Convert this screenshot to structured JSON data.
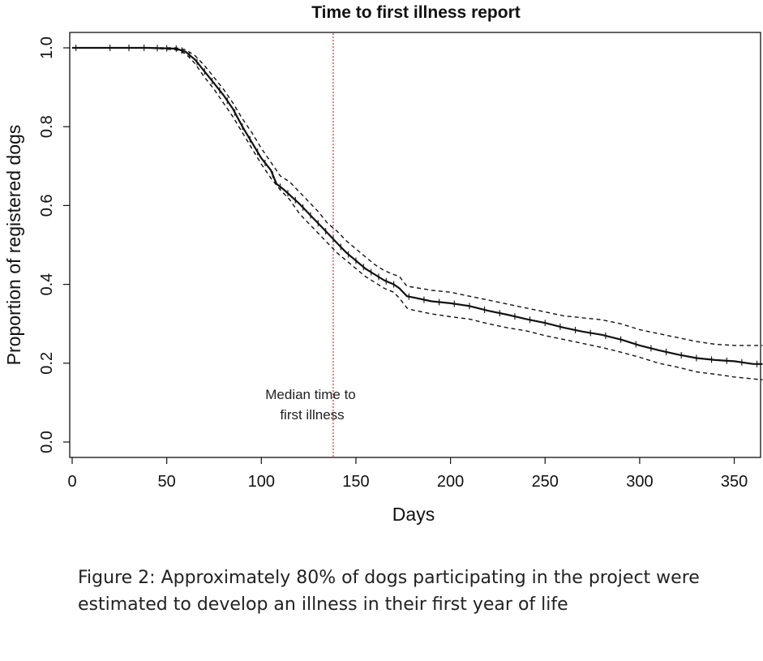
{
  "figure": {
    "caption_line1": "Figure 2: Approximately 80% of dogs participating in the project were",
    "caption_line2": "estimated to develop an illness in their first year of life"
  },
  "chart_data": {
    "type": "line",
    "title": "Time to first illness report",
    "xlabel": "Days",
    "ylabel": "Proportion of registered dogs",
    "xlim": [
      0,
      365
    ],
    "ylim": [
      0,
      1.0
    ],
    "x_ticks": [
      0,
      50,
      100,
      150,
      200,
      250,
      300,
      350
    ],
    "y_ticks": [
      0.0,
      0.2,
      0.4,
      0.6,
      0.8,
      1.0
    ],
    "x_tick_labels": [
      "0",
      "50",
      "100",
      "150",
      "200",
      "250",
      "300",
      "350"
    ],
    "y_tick_labels": [
      "0.0",
      "0.2",
      "0.4",
      "0.6",
      "0.8",
      "1.0"
    ],
    "grid": false,
    "annotation": {
      "line1": "Median time to",
      "line2": "first illness",
      "x": 138,
      "line_color": "#e0403a"
    },
    "series": [
      {
        "name": "estimate",
        "style": "solid",
        "x": [
          0,
          40,
          55,
          60,
          65,
          70,
          75,
          80,
          85,
          90,
          95,
          100,
          105,
          108,
          112,
          120,
          125,
          130,
          135,
          140,
          145,
          150,
          155,
          160,
          165,
          170,
          173,
          177,
          180,
          190,
          200,
          210,
          220,
          230,
          240,
          250,
          260,
          270,
          280,
          290,
          300,
          310,
          320,
          330,
          340,
          350,
          360,
          365
        ],
        "y": [
          1.0,
          1.0,
          0.998,
          0.99,
          0.97,
          0.94,
          0.91,
          0.88,
          0.845,
          0.8,
          0.76,
          0.72,
          0.69,
          0.655,
          0.64,
          0.605,
          0.58,
          0.555,
          0.53,
          0.505,
          0.48,
          0.46,
          0.44,
          0.425,
          0.41,
          0.4,
          0.39,
          0.37,
          0.367,
          0.357,
          0.352,
          0.345,
          0.333,
          0.323,
          0.312,
          0.302,
          0.29,
          0.28,
          0.272,
          0.26,
          0.245,
          0.233,
          0.222,
          0.213,
          0.208,
          0.205,
          0.198,
          0.198
        ]
      },
      {
        "name": "upper",
        "style": "dashed",
        "x": [
          0,
          40,
          55,
          60,
          65,
          70,
          75,
          80,
          85,
          90,
          95,
          100,
          105,
          110,
          115,
          120,
          125,
          130,
          135,
          140,
          145,
          150,
          155,
          160,
          165,
          170,
          173,
          177,
          180,
          190,
          200,
          210,
          220,
          230,
          240,
          250,
          260,
          270,
          280,
          290,
          300,
          310,
          320,
          330,
          340,
          350,
          360,
          365
        ],
        "y": [
          1.0,
          1.0,
          1.0,
          0.995,
          0.98,
          0.955,
          0.925,
          0.895,
          0.86,
          0.82,
          0.785,
          0.745,
          0.71,
          0.675,
          0.66,
          0.635,
          0.61,
          0.585,
          0.555,
          0.535,
          0.51,
          0.49,
          0.47,
          0.45,
          0.435,
          0.425,
          0.42,
          0.395,
          0.393,
          0.385,
          0.38,
          0.37,
          0.36,
          0.35,
          0.34,
          0.33,
          0.32,
          0.315,
          0.31,
          0.3,
          0.285,
          0.275,
          0.265,
          0.255,
          0.248,
          0.245,
          0.245,
          0.245
        ]
      },
      {
        "name": "lower",
        "style": "dashed",
        "x": [
          0,
          40,
          55,
          60,
          65,
          70,
          75,
          80,
          85,
          90,
          95,
          100,
          105,
          110,
          115,
          120,
          125,
          130,
          135,
          140,
          145,
          150,
          155,
          160,
          165,
          170,
          173,
          177,
          180,
          190,
          200,
          210,
          220,
          230,
          240,
          250,
          260,
          270,
          280,
          290,
          300,
          310,
          320,
          330,
          340,
          350,
          360,
          365
        ],
        "y": [
          1.0,
          1.0,
          0.995,
          0.985,
          0.96,
          0.925,
          0.895,
          0.86,
          0.825,
          0.785,
          0.745,
          0.705,
          0.67,
          0.64,
          0.615,
          0.58,
          0.555,
          0.53,
          0.505,
          0.48,
          0.46,
          0.44,
          0.42,
          0.405,
          0.39,
          0.38,
          0.365,
          0.34,
          0.335,
          0.325,
          0.318,
          0.312,
          0.3,
          0.29,
          0.282,
          0.27,
          0.26,
          0.25,
          0.24,
          0.228,
          0.215,
          0.2,
          0.19,
          0.178,
          0.172,
          0.165,
          0.16,
          0.158
        ]
      }
    ],
    "censor_x": [
      2,
      20,
      30,
      38,
      45,
      50,
      55,
      58,
      62,
      66,
      70,
      74,
      78,
      82,
      86,
      90,
      94,
      98,
      102,
      106,
      110,
      114,
      118,
      122,
      126,
      130,
      134,
      138,
      142,
      146,
      150,
      154,
      158,
      162,
      166,
      170,
      178,
      186,
      194,
      202,
      210,
      218,
      226,
      234,
      242,
      250,
      258,
      266,
      274,
      282,
      290,
      298,
      306,
      314,
      322,
      330,
      338,
      346,
      354,
      362
    ]
  }
}
